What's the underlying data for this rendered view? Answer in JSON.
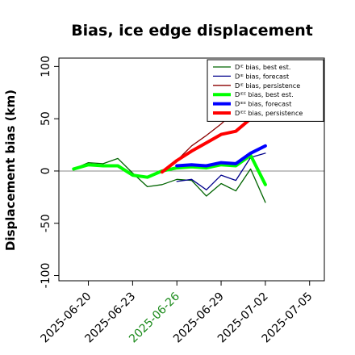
{
  "chart_data": {
    "type": "line",
    "title": "Bias, ice edge displacement",
    "ylabel": "Displacement bias (km)",
    "xlabel": "",
    "ylim": [
      -105,
      108
    ],
    "xlim": [
      "2025-06-18",
      "2025-07-06"
    ],
    "y_ticks": [
      -100,
      -50,
      0,
      50,
      100
    ],
    "x_ticks": [
      "2025-06-20",
      "2025-06-23",
      "2025-06-26",
      "2025-06-29",
      "2025-07-02",
      "2025-07-05"
    ],
    "highlighted_tick": "2025-06-26",
    "highlight_color": "#1a8a1a",
    "zero_line": true,
    "legend_position": "top-right",
    "series": [
      {
        "name": "Dᴵᴱ bias, best est.",
        "color": "#006400",
        "width": 1.3,
        "x": [
          "2025-06-19",
          "2025-06-20",
          "2025-06-21",
          "2025-06-22",
          "2025-06-23",
          "2025-06-24",
          "2025-06-25",
          "2025-06-26",
          "2025-06-27",
          "2025-06-28",
          "2025-06-29",
          "2025-06-30",
          "2025-07-01",
          "2025-07-02"
        ],
        "y": [
          2,
          8,
          7,
          12,
          -2,
          -15,
          -13,
          -8,
          -9,
          -24,
          -12,
          -19,
          2,
          -30
        ]
      },
      {
        "name": "Dᴵᴱ bias, forecast",
        "color": "#00008b",
        "width": 1.3,
        "x": [
          "2025-06-26",
          "2025-06-27",
          "2025-06-28",
          "2025-06-29",
          "2025-06-30",
          "2025-07-01",
          "2025-07-02"
        ],
        "y": [
          -10,
          -8,
          -18,
          -4,
          -9,
          13,
          17
        ]
      },
      {
        "name": "Dᴵᴱ bias, persistence",
        "color": "#8b0000",
        "width": 1.3,
        "x": [
          "2025-06-25",
          "2025-06-26",
          "2025-06-27",
          "2025-06-28",
          "2025-06-29",
          "2025-06-30"
        ],
        "y": [
          -1,
          10,
          24,
          34,
          45,
          58
        ]
      },
      {
        "name": "Dᴵᴱᴱ bias, best est.",
        "color": "#00ff00",
        "width": 4,
        "x": [
          "2025-06-19",
          "2025-06-20",
          "2025-06-21",
          "2025-06-22",
          "2025-06-23",
          "2025-06-24",
          "2025-06-25",
          "2025-06-26",
          "2025-06-27",
          "2025-06-28",
          "2025-06-29",
          "2025-06-30",
          "2025-07-01",
          "2025-07-02"
        ],
        "y": [
          2,
          6,
          5,
          5,
          -4,
          -6,
          0,
          3,
          4,
          3,
          6,
          5,
          15,
          -13
        ]
      },
      {
        "name": "Dᴵᴱᴱ bias, forecast",
        "color": "#0000ff",
        "width": 4,
        "x": [
          "2025-06-26",
          "2025-06-27",
          "2025-06-28",
          "2025-06-29",
          "2025-06-30",
          "2025-07-01",
          "2025-07-02"
        ],
        "y": [
          5,
          6,
          5,
          8,
          7,
          17,
          24
        ]
      },
      {
        "name": "Dᴵᴱᴱ bias, persistence",
        "color": "#ff0000",
        "width": 4,
        "x": [
          "2025-06-25",
          "2025-06-26",
          "2025-06-27",
          "2025-06-28",
          "2025-06-29",
          "2025-06-30",
          "2025-07-01"
        ],
        "y": [
          -1,
          10,
          19,
          27,
          35,
          38,
          50
        ]
      }
    ]
  }
}
